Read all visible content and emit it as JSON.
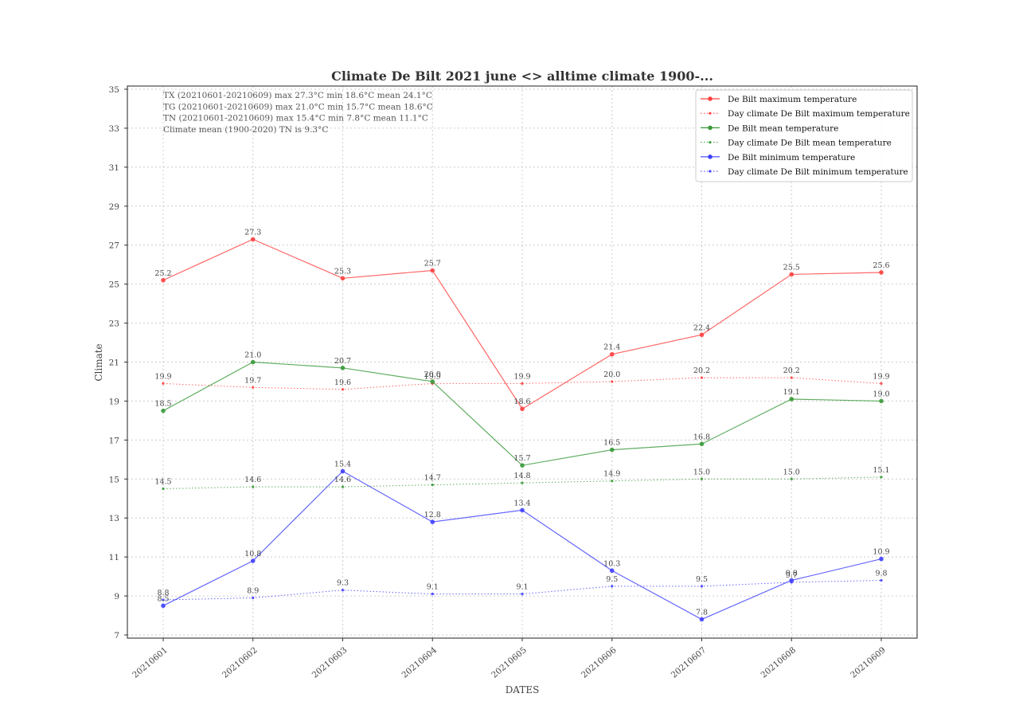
{
  "chart_data": {
    "type": "line",
    "title": "Climate De Bilt 2021 june <> alltime climate 1900-...",
    "xlabel": "DATES",
    "ylabel": "Climate",
    "ylim": [
      7,
      35
    ],
    "yticks": [
      7,
      9,
      11,
      13,
      15,
      17,
      19,
      21,
      23,
      25,
      27,
      29,
      31,
      33,
      35
    ],
    "grid": true,
    "legend_position": "top-right",
    "categories": [
      "20210601",
      "20210602",
      "20210603",
      "20210604",
      "20210605",
      "20210606",
      "20210607",
      "20210608",
      "20210609"
    ],
    "series": [
      {
        "name": "De Bilt maximum temperature",
        "color": "#ff4040",
        "style": "solid",
        "marker": "large",
        "values": [
          25.2,
          27.3,
          25.3,
          25.7,
          18.6,
          21.4,
          22.4,
          25.5,
          25.6
        ]
      },
      {
        "name": "Day climate De Bilt maximum temperature",
        "color": "#ff4040",
        "style": "dotted",
        "marker": "small",
        "values": [
          19.9,
          19.7,
          19.6,
          19.9,
          19.9,
          20.0,
          20.2,
          20.2,
          19.9
        ]
      },
      {
        "name": "De Bilt mean temperature",
        "color": "#3a9a3a",
        "style": "solid",
        "marker": "large",
        "values": [
          18.5,
          21.0,
          20.7,
          20.0,
          15.7,
          16.5,
          16.8,
          19.1,
          19.0
        ]
      },
      {
        "name": "Day climate De Bilt mean temperature",
        "color": "#3a9a3a",
        "style": "dotted",
        "marker": "small",
        "values": [
          14.5,
          14.6,
          14.6,
          14.7,
          14.8,
          14.9,
          15.0,
          15.0,
          15.1
        ]
      },
      {
        "name": "De Bilt minimum temperature",
        "color": "#4040ff",
        "style": "solid",
        "marker": "large",
        "values": [
          8.5,
          10.8,
          15.4,
          12.8,
          13.4,
          10.3,
          7.8,
          9.8,
          10.9
        ]
      },
      {
        "name": "Day climate De Bilt minimum temperature",
        "color": "#4040ff",
        "style": "dotted",
        "marker": "small",
        "values": [
          8.8,
          8.9,
          9.3,
          9.1,
          9.1,
          9.5,
          9.5,
          9.7,
          9.8
        ]
      }
    ],
    "annotations": [
      "TX (20210601-20210609)   max 27.3°C   min 18.6°C   mean 24.1°C",
      "TG (20210601-20210609)   max 21.0°C   min 15.7°C   mean 18.6°C",
      "TN (20210601-20210609)   max 15.4°C   min 7.8°C   mean 11.1°C",
      "Climate mean (1900-2020) TN is 9.3°C"
    ]
  }
}
